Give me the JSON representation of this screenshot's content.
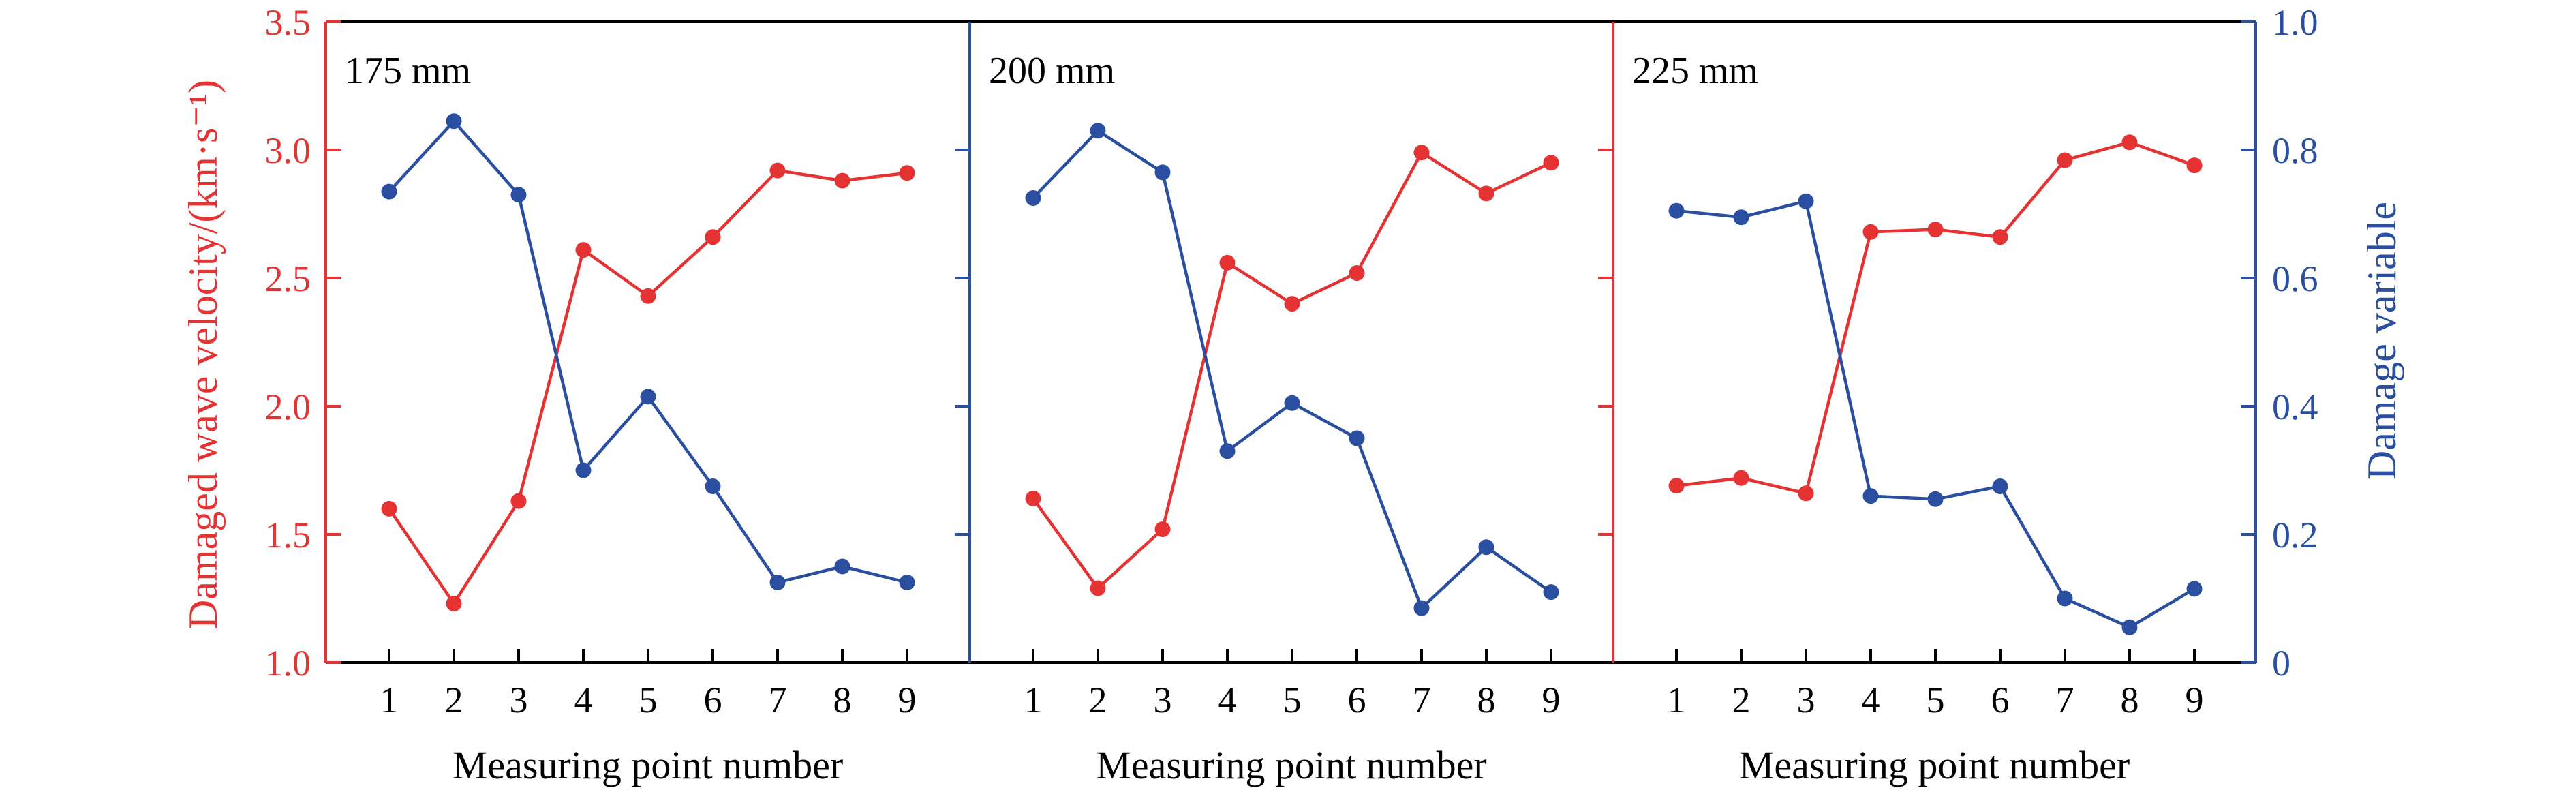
{
  "colors": {
    "velocity": "#e53333",
    "damage": "#2a4fa0",
    "frame": "#000000"
  },
  "chart_data": [
    {
      "type": "line",
      "panel_label": "175 mm",
      "xlabel": "Measuring point number",
      "ylabel_left": "Damaged wave velocity/(km·s⁻¹)",
      "ylabel_right": "Damage variable",
      "ylim_left": [
        1.0,
        3.5
      ],
      "ylim_right": [
        0,
        1.0
      ],
      "x": [
        1,
        2,
        3,
        4,
        5,
        6,
        7,
        8,
        9
      ],
      "series": [
        {
          "axis": "left",
          "values": [
            1.6,
            1.23,
            1.63,
            2.61,
            2.43,
            2.66,
            2.92,
            2.88,
            2.91
          ]
        },
        {
          "axis": "right",
          "values": [
            0.735,
            0.845,
            0.73,
            0.3,
            0.415,
            0.275,
            0.125,
            0.15,
            0.125
          ]
        }
      ]
    },
    {
      "type": "line",
      "panel_label": "200 mm",
      "xlabel": "Measuring point number",
      "x": [
        1,
        2,
        3,
        4,
        5,
        6,
        7,
        8,
        9
      ],
      "series": [
        {
          "axis": "left",
          "values": [
            1.64,
            1.29,
            1.52,
            2.56,
            2.4,
            2.52,
            2.99,
            2.83,
            2.95
          ]
        },
        {
          "axis": "right",
          "values": [
            0.725,
            0.83,
            0.765,
            0.33,
            0.405,
            0.35,
            0.085,
            0.18,
            0.11
          ]
        }
      ]
    },
    {
      "type": "line",
      "panel_label": "225 mm",
      "xlabel": "Measuring point number",
      "x": [
        1,
        2,
        3,
        4,
        5,
        6,
        7,
        8,
        9
      ],
      "series": [
        {
          "axis": "left",
          "values": [
            1.69,
            1.72,
            1.66,
            2.68,
            2.69,
            2.66,
            2.96,
            3.03,
            2.94
          ]
        },
        {
          "axis": "right",
          "values": [
            0.705,
            0.695,
            0.72,
            0.26,
            0.255,
            0.275,
            0.1,
            0.055,
            0.115
          ]
        }
      ]
    }
  ],
  "left_axis": {
    "ticks": [
      "1.0",
      "1.5",
      "2.0",
      "2.5",
      "3.0",
      "3.5"
    ]
  },
  "right_axis": {
    "ticks": [
      "0",
      "0.2",
      "0.4",
      "0.6",
      "0.8",
      "1.0"
    ]
  },
  "x_ticks": [
    "1",
    "2",
    "3",
    "4",
    "5",
    "6",
    "7",
    "8",
    "9"
  ]
}
